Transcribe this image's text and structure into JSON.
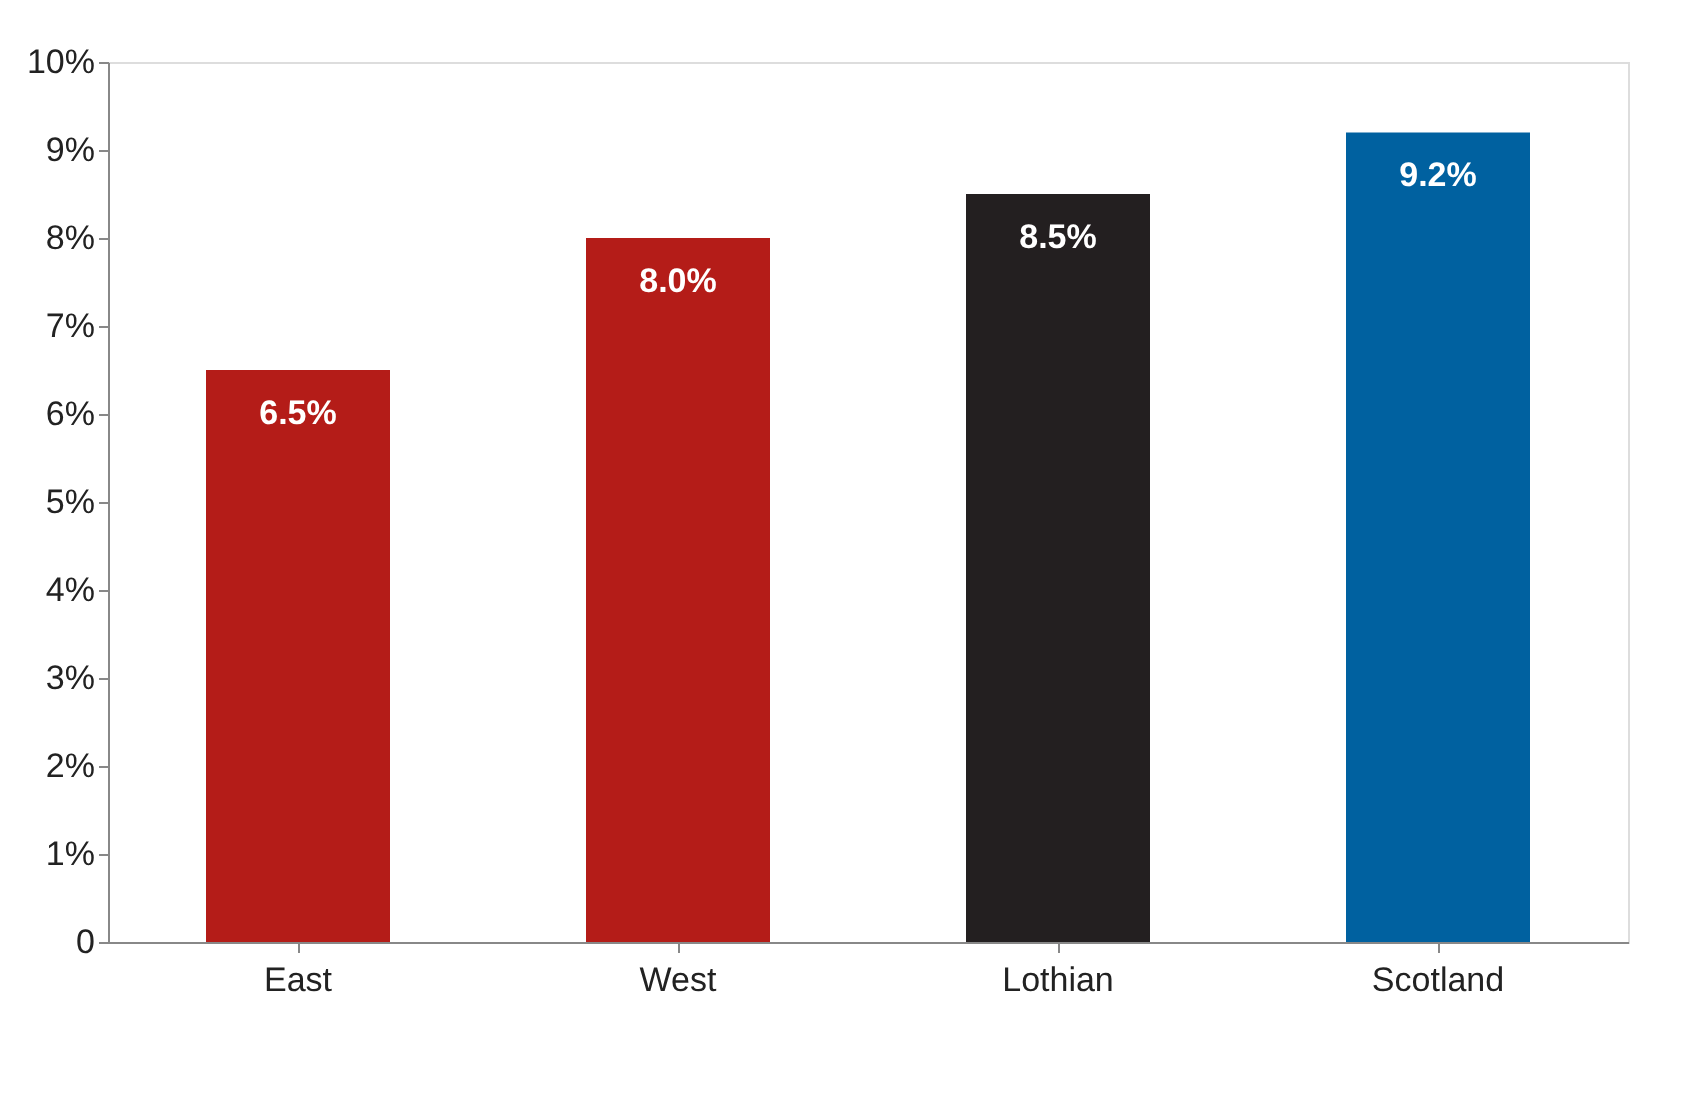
{
  "chart_data": {
    "type": "bar",
    "categories": [
      "East",
      "West",
      "Lothian",
      "Scotland"
    ],
    "values": [
      6.5,
      8.0,
      8.5,
      9.2
    ],
    "colors": [
      "#b41c18",
      "#b41c18",
      "#231f20",
      "#0061a0"
    ],
    "value_labels": [
      "6.5%",
      "8.0%",
      "8.5%",
      "9.2%"
    ],
    "ylim": [
      0,
      10
    ],
    "yticks": [
      0,
      {
        "value": 1,
        "label": "1%"
      },
      {
        "value": 2,
        "label": "2%"
      },
      {
        "value": 3,
        "label": "3%"
      },
      {
        "value": 4,
        "label": "4%"
      },
      {
        "value": 5,
        "label": "5%"
      },
      {
        "value": 6,
        "label": "6%"
      },
      {
        "value": 7,
        "label": "7%"
      },
      {
        "value": 8,
        "label": "8%"
      },
      {
        "value": 9,
        "label": "9%"
      },
      {
        "value": 10,
        "label": "10%"
      }
    ],
    "grid": false
  }
}
